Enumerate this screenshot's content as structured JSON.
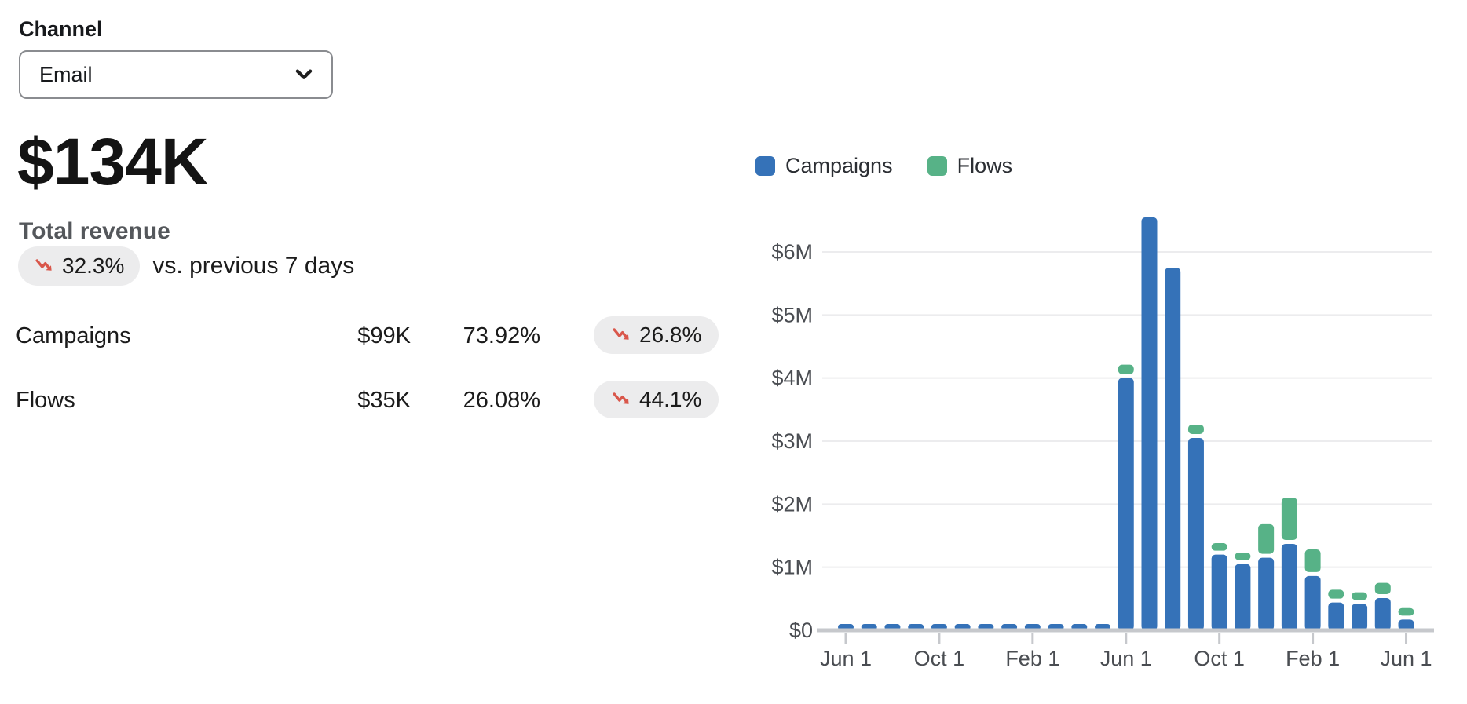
{
  "colors": {
    "campaigns_blue": "#3572B8",
    "flows_green": "#57B287",
    "trend_red": "#D9574B",
    "pill_bg": "#ececed",
    "grid_line": "#ececee",
    "axis_line": "#c6c8cc",
    "axis_text": "#4a4d52"
  },
  "filter": {
    "label": "Channel",
    "selected_option": "Email"
  },
  "summary": {
    "total_value": "$134K",
    "total_label": "Total revenue",
    "change_pct": "32.3%",
    "change_direction": "down",
    "change_context": "vs. previous 7 days",
    "rows": [
      {
        "name": "Campaigns",
        "value": "$99K",
        "share": "73.92%",
        "change_pct": "26.8%",
        "change_direction": "down"
      },
      {
        "name": "Flows",
        "value": "$35K",
        "share": "26.08%",
        "change_pct": "44.1%",
        "change_direction": "down"
      }
    ]
  },
  "legend": [
    {
      "label": "Campaigns",
      "color": "#3572B8"
    },
    {
      "label": "Flows",
      "color": "#57B287"
    }
  ],
  "chart_data": {
    "type": "bar",
    "stacked": true,
    "unit": "millions USD",
    "n_bars": 25,
    "grid": true,
    "legend_position": "top",
    "y_ticks": [
      "$0",
      "$1M",
      "$2M",
      "$3M",
      "$4M",
      "$5M",
      "$6M"
    ],
    "ylim": [
      0,
      6.6
    ],
    "x_tick_positions": [
      0,
      4,
      8,
      12,
      16,
      20,
      24
    ],
    "x_tick_labels": [
      "Jun 1",
      "Oct 1",
      "Feb 1",
      "Jun 1",
      "Oct 1",
      "Feb 1",
      "Jun 1"
    ],
    "series": [
      {
        "name": "Campaigns",
        "color": "#3572B8",
        "values": [
          0.1,
          0.1,
          0.1,
          0.1,
          0.1,
          0.1,
          0.1,
          0.1,
          0.1,
          0.1,
          0.1,
          0.1,
          4.0,
          6.55,
          5.75,
          3.05,
          1.2,
          1.05,
          1.15,
          1.37,
          0.86,
          0.44,
          0.42,
          0.51,
          0.17
        ]
      },
      {
        "name": "Flows",
        "color": "#57B287",
        "values": [
          0,
          0,
          0,
          0,
          0,
          0,
          0,
          0,
          0,
          0,
          0,
          0,
          0.15,
          0,
          0,
          0.15,
          0.12,
          0.12,
          0.47,
          0.67,
          0.36,
          0.14,
          0.12,
          0.18,
          0.12
        ]
      }
    ]
  }
}
